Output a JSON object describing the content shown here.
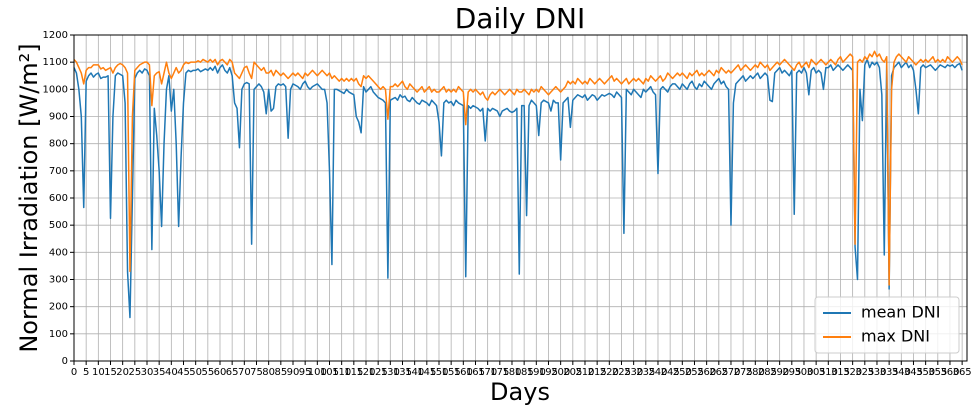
{
  "chart_data": {
    "type": "line",
    "title": "Daily DNI",
    "xlabel": "Days",
    "ylabel": "Normal Irradiation [W/m²]",
    "x": [
      0,
      1,
      2,
      3,
      4,
      5,
      6,
      7,
      8,
      9,
      10,
      11,
      12,
      13,
      14,
      15,
      16,
      17,
      18,
      19,
      20,
      21,
      22,
      23,
      24,
      25,
      26,
      27,
      28,
      29,
      30,
      31,
      32,
      33,
      34,
      35,
      36,
      37,
      38,
      39,
      40,
      41,
      42,
      43,
      44,
      45,
      46,
      47,
      48,
      49,
      50,
      51,
      52,
      53,
      54,
      55,
      56,
      57,
      58,
      59,
      60,
      61,
      62,
      63,
      64,
      65,
      66,
      67,
      68,
      69,
      70,
      71,
      72,
      73,
      74,
      75,
      76,
      77,
      78,
      79,
      80,
      81,
      82,
      83,
      84,
      85,
      86,
      87,
      88,
      89,
      90,
      91,
      92,
      93,
      94,
      95,
      96,
      97,
      98,
      99,
      100,
      101,
      102,
      103,
      104,
      105,
      106,
      107,
      108,
      109,
      110,
      111,
      112,
      113,
      114,
      115,
      116,
      117,
      118,
      119,
      120,
      121,
      122,
      123,
      124,
      125,
      126,
      127,
      128,
      129,
      130,
      131,
      132,
      133,
      134,
      135,
      136,
      137,
      138,
      139,
      140,
      141,
      142,
      143,
      144,
      145,
      146,
      147,
      148,
      149,
      150,
      151,
      152,
      153,
      154,
      155,
      156,
      157,
      158,
      159,
      160,
      161,
      162,
      163,
      164,
      165,
      166,
      167,
      168,
      169,
      170,
      171,
      172,
      173,
      174,
      175,
      176,
      177,
      178,
      179,
      180,
      181,
      182,
      183,
      184,
      185,
      186,
      187,
      188,
      189,
      190,
      191,
      192,
      193,
      194,
      195,
      196,
      197,
      198,
      199,
      200,
      201,
      202,
      203,
      204,
      205,
      206,
      207,
      208,
      209,
      210,
      211,
      212,
      213,
      214,
      215,
      216,
      217,
      218,
      219,
      220,
      221,
      222,
      223,
      224,
      225,
      226,
      227,
      228,
      229,
      230,
      231,
      232,
      233,
      234,
      235,
      236,
      237,
      238,
      239,
      240,
      241,
      242,
      243,
      244,
      245,
      246,
      247,
      248,
      249,
      250,
      251,
      252,
      253,
      254,
      255,
      256,
      257,
      258,
      259,
      260,
      261,
      262,
      263,
      264,
      265,
      266,
      267,
      268,
      269,
      270,
      271,
      272,
      273,
      274,
      275,
      276,
      277,
      278,
      279,
      280,
      281,
      282,
      283,
      284,
      285,
      286,
      287,
      288,
      289,
      290,
      291,
      292,
      293,
      294,
      295,
      296,
      297,
      298,
      299,
      300,
      301,
      302,
      303,
      304,
      305,
      306,
      307,
      308,
      309,
      310,
      311,
      312,
      313,
      314,
      315,
      316,
      317,
      318,
      319,
      320,
      321,
      322,
      323,
      324,
      325,
      326,
      327,
      328,
      329,
      330,
      331,
      332,
      333,
      334,
      335,
      336,
      337,
      338,
      339,
      340,
      341,
      342,
      343,
      344,
      345,
      346,
      347,
      348,
      349,
      350,
      351,
      352,
      353,
      354,
      355,
      356,
      357,
      358,
      359,
      360,
      361,
      362,
      363,
      364,
      365
    ],
    "series": [
      {
        "name": "mean DNI",
        "color": "#1f77b4",
        "values": [
          1080,
          1060,
          1000,
          900,
          565,
          1030,
          1050,
          1060,
          1045,
          1055,
          1060,
          1040,
          1045,
          1045,
          1050,
          525,
          900,
          1050,
          1060,
          1055,
          1050,
          950,
          330,
          160,
          600,
          1040,
          1060,
          1070,
          1060,
          1075,
          1070,
          1050,
          410,
          930,
          830,
          700,
          495,
          800,
          1000,
          1050,
          920,
          1000,
          800,
          495,
          750,
          950,
          1060,
          1070,
          1065,
          1070,
          1070,
          1075,
          1065,
          1070,
          1075,
          1070,
          1080,
          1070,
          1085,
          1060,
          1080,
          1090,
          1070,
          1060,
          1080,
          1050,
          950,
          930,
          785,
          1000,
          1020,
          1025,
          1020,
          430,
          1000,
          1010,
          1020,
          1010,
          990,
          910,
          1000,
          920,
          930,
          1010,
          1020,
          1015,
          1020,
          1010,
          820,
          1000,
          1020,
          1015,
          1010,
          1000,
          1020,
          1030,
          1010,
          1000,
          1010,
          1015,
          1020,
          1010,
          1000,
          1000,
          950,
          700,
          355,
          1000,
          1000,
          995,
          990,
          985,
          1000,
          990,
          985,
          980,
          900,
          880,
          840,
          1010,
          990,
          1000,
          1010,
          990,
          980,
          970,
          965,
          960,
          950,
          305,
          960,
          965,
          970,
          960,
          980,
          970,
          975,
          960,
          955,
          970,
          960,
          950,
          945,
          960,
          955,
          950,
          940,
          960,
          950,
          940,
          880,
          755,
          950,
          960,
          950,
          955,
          940,
          960,
          950,
          945,
          940,
          310,
          940,
          930,
          940,
          935,
          930,
          920,
          930,
          810,
          930,
          920,
          930,
          925,
          920,
          900,
          920,
          925,
          930,
          920,
          915,
          920,
          930,
          320,
          940,
          940,
          535,
          940,
          960,
          950,
          940,
          830,
          950,
          960,
          955,
          950,
          920,
          960,
          950,
          950,
          740,
          950,
          960,
          970,
          860,
          960,
          970,
          980,
          975,
          970,
          980,
          960,
          970,
          980,
          975,
          960,
          970,
          980,
          975,
          980,
          985,
          980,
          970,
          990,
          980,
          970,
          470,
          1000,
          990,
          980,
          1000,
          990,
          980,
          970,
          1000,
          990,
          1000,
          1010,
          990,
          980,
          690,
          1000,
          1010,
          1000,
          990,
          1010,
          1020,
          1020,
          1010,
          1000,
          1020,
          1010,
          1000,
          1020,
          1030,
          1010,
          1000,
          1020,
          1010,
          1030,
          1020,
          1010,
          1000,
          1020,
          1030,
          1040,
          1020,
          1030,
          1010,
          1000,
          500,
          950,
          1020,
          1030,
          1040,
          1050,
          1030,
          1040,
          1050,
          1040,
          1050,
          1060,
          1040,
          1050,
          1060,
          1050,
          960,
          955,
          1060,
          1070,
          1080,
          1060,
          1070,
          1060,
          1050,
          1070,
          540,
          1060,
          1070,
          1060,
          1080,
          1060,
          980,
          1070,
          1080,
          1060,
          1070,
          1060,
          1000,
          1080,
          1080,
          1090,
          1070,
          1080,
          1090,
          1080,
          1070,
          1080,
          1090,
          1080,
          1070,
          420,
          300,
          1000,
          885,
          1090,
          1110,
          1080,
          1100,
          1090,
          1100,
          1080,
          980,
          390,
          1100,
          265,
          1050,
          1080,
          1090,
          1100,
          1080,
          1090,
          1100,
          1080,
          1090,
          1070,
          1000,
          910,
          1080,
          1090,
          1080,
          1085,
          1090,
          1080,
          1070,
          1080,
          1090,
          1085,
          1080,
          1090,
          1085,
          1090,
          1080,
          1090,
          1095,
          1070
        ]
      },
      {
        "name": "max DNI",
        "color": "#ff7f0e",
        "values": [
          1110,
          1100,
          1080,
          1060,
          1020,
          1070,
          1080,
          1080,
          1090,
          1090,
          1090,
          1075,
          1080,
          1070,
          1075,
          1080,
          1060,
          1080,
          1090,
          1095,
          1090,
          1080,
          1060,
          330,
          900,
          1070,
          1080,
          1090,
          1095,
          1100,
          1100,
          1090,
          940,
          1050,
          1060,
          1065,
          1020,
          1060,
          1100,
          1060,
          1040,
          1060,
          1080,
          1060,
          1070,
          1090,
          1100,
          1095,
          1100,
          1100,
          1100,
          1105,
          1100,
          1110,
          1105,
          1100,
          1110,
          1100,
          1110,
          1090,
          1105,
          1110,
          1100,
          1090,
          1110,
          1100,
          1060,
          1050,
          1040,
          1060,
          1080,
          1085,
          1060,
          1040,
          1100,
          1090,
          1080,
          1070,
          1080,
          1060,
          1060,
          1070,
          1050,
          1070,
          1060,
          1050,
          1060,
          1050,
          1040,
          1050,
          1060,
          1050,
          1060,
          1050,
          1040,
          1060,
          1050,
          1060,
          1070,
          1060,
          1050,
          1060,
          1070,
          1060,
          1050,
          1060,
          1040,
          1050,
          1040,
          1030,
          1040,
          1030,
          1040,
          1030,
          1040,
          1030,
          1040,
          1020,
          1010,
          1050,
          1040,
          1050,
          1040,
          1030,
          1020,
          1010,
          1000,
          1010,
          1000,
          890,
          1010,
          1010,
          1020,
          1010,
          1020,
          1030,
          1010,
          1000,
          1020,
          1010,
          1000,
          990,
          1000,
          1010,
          990,
          1000,
          1010,
          990,
          1000,
          990,
          990,
          1000,
          1010,
          990,
          1000,
          990,
          1000,
          990,
          1010,
          1000,
          990,
          870,
          990,
          1000,
          990,
          1000,
          990,
          980,
          990,
          970,
          960,
          980,
          990,
          980,
          990,
          1000,
          990,
          980,
          990,
          1000,
          990,
          980,
          1000,
          990,
          990,
          1000,
          990,
          980,
          1000,
          990,
          1000,
          990,
          1010,
          1000,
          990,
          980,
          990,
          1000,
          1010,
          1000,
          990,
          1000,
          1010,
          1030,
          1020,
          1030,
          1020,
          1040,
          1030,
          1020,
          1030,
          1020,
          1040,
          1030,
          1020,
          1030,
          1040,
          1030,
          1020,
          1030,
          1040,
          1050,
          1030,
          1040,
          1030,
          1020,
          1030,
          1040,
          1020,
          1030,
          1040,
          1030,
          1040,
          1030,
          1020,
          1040,
          1030,
          1050,
          1040,
          1030,
          1040,
          1050,
          1030,
          1040,
          1060,
          1050,
          1040,
          1050,
          1060,
          1050,
          1060,
          1050,
          1040,
          1060,
          1050,
          1060,
          1070,
          1050,
          1060,
          1050,
          1060,
          1070,
          1060,
          1050,
          1070,
          1060,
          1080,
          1070,
          1060,
          1070,
          1060,
          1070,
          1080,
          1090,
          1070,
          1080,
          1090,
          1080,
          1070,
          1080,
          1090,
          1080,
          1100,
          1090,
          1080,
          1090,
          1070,
          1080,
          1090,
          1100,
          1090,
          1100,
          1110,
          1100,
          1090,
          1080,
          1070,
          1090,
          1100,
          1080,
          1090,
          1100,
          1080,
          1110,
          1100,
          1090,
          1100,
          1110,
          1100,
          1090,
          1100,
          1110,
          1100,
          1090,
          1110,
          1120,
          1100,
          1110,
          1120,
          1130,
          1120,
          430,
          1100,
          1110,
          1100,
          1120,
          1110,
          1130,
          1120,
          1140,
          1120,
          1130,
          1110,
          1100,
          1120,
          280,
          1000,
          1100,
          1120,
          1130,
          1120,
          1110,
          1100,
          1120,
          1110,
          1100,
          1090,
          1100,
          1110,
          1100,
          1110,
          1100,
          1110,
          1120,
          1100,
          1110,
          1100,
          1110,
          1100,
          1120,
          1110,
          1100,
          1110,
          1120,
          1110,
          1090
        ]
      }
    ],
    "xlim": [
      0,
      367
    ],
    "ylim": [
      0,
      1200
    ],
    "xticks": [
      0,
      5,
      10,
      15,
      20,
      25,
      30,
      35,
      40,
      45,
      50,
      55,
      60,
      65,
      70,
      75,
      80,
      85,
      90,
      95,
      100,
      105,
      110,
      115,
      120,
      125,
      130,
      135,
      140,
      145,
      150,
      155,
      160,
      165,
      170,
      175,
      180,
      185,
      190,
      195,
      200,
      205,
      210,
      215,
      220,
      225,
      230,
      235,
      240,
      245,
      250,
      255,
      260,
      265,
      270,
      275,
      280,
      285,
      290,
      295,
      300,
      305,
      310,
      315,
      320,
      325,
      330,
      335,
      340,
      345,
      350,
      355,
      360,
      365
    ],
    "yticks": [
      0,
      100,
      200,
      300,
      400,
      500,
      600,
      700,
      800,
      900,
      1000,
      1100,
      1200
    ],
    "grid": true,
    "legend": "lower right"
  }
}
